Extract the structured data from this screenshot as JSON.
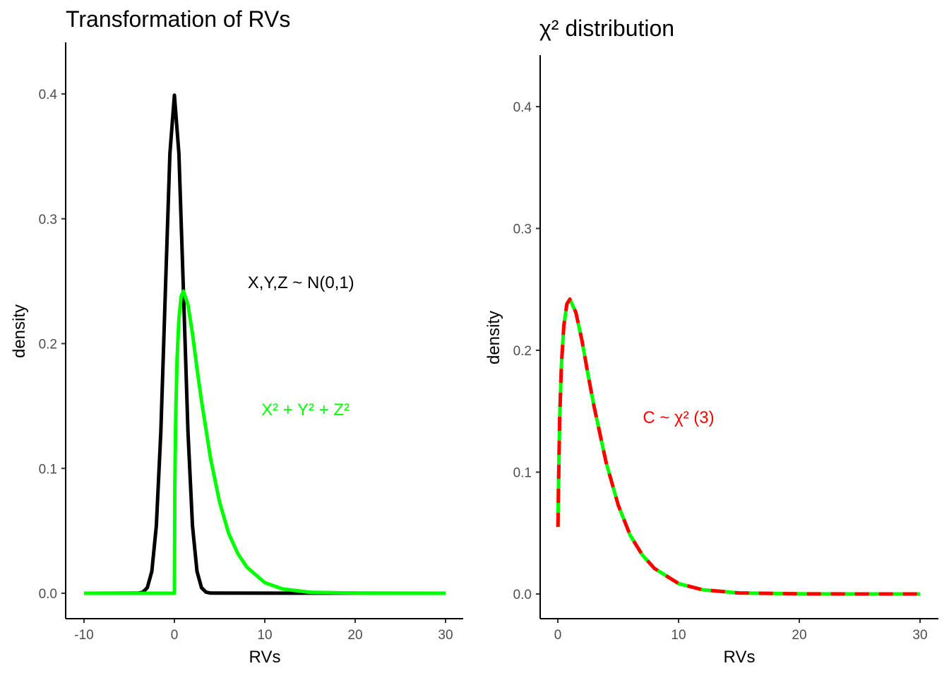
{
  "chart_data": [
    {
      "type": "line",
      "title": "Transformation of RVs",
      "xlabel": "RVs",
      "ylabel": "density",
      "xlim": [
        -10,
        30
      ],
      "ylim": [
        0,
        0.4
      ],
      "xticks": [
        "-10",
        "0",
        "10",
        "20",
        "30"
      ],
      "yticks": [
        "0.0",
        "0.1",
        "0.2",
        "0.3",
        "0.4"
      ],
      "grid": false,
      "legend": "none",
      "series": [
        {
          "color": "#000000",
          "x": [
            -10,
            -4,
            -3.5,
            -3,
            -2.5,
            -2,
            -1.5,
            -1,
            -0.5,
            0,
            0.5,
            1,
            1.5,
            2,
            2.5,
            3,
            3.5,
            4,
            30
          ],
          "y": [
            0,
            0.0001,
            0.0009,
            0.0044,
            0.0175,
            0.054,
            0.1295,
            0.242,
            0.352,
            0.399,
            0.352,
            0.242,
            0.1295,
            0.054,
            0.0175,
            0.0044,
            0.0009,
            0.0001,
            0
          ]
        },
        {
          "color": "#00ff00",
          "x": [
            -10,
            0,
            0.05,
            0.15,
            0.3,
            0.5,
            0.75,
            1,
            1.5,
            2,
            2.5,
            3,
            4,
            5,
            6,
            7,
            8,
            10,
            12,
            15,
            20,
            25,
            30
          ],
          "y": [
            0,
            0,
            0.086,
            0.143,
            0.188,
            0.22,
            0.238,
            0.242,
            0.231,
            0.208,
            0.18,
            0.154,
            0.108,
            0.073,
            0.048,
            0.032,
            0.021,
            0.0085,
            0.0034,
            0.0008,
            0.0001,
            0,
            0
          ]
        }
      ],
      "annotations": [
        {
          "text": "X,Y,Z ~ N(0,1)",
          "color": "#000000",
          "x": 14,
          "y": 0.249
        },
        {
          "text": "X² + Y² + Z²",
          "color": "#00ff00",
          "x": 14.5,
          "y": 0.147
        }
      ]
    },
    {
      "type": "line",
      "title": "χ² distribution",
      "xlabel": "RVs",
      "ylabel": "density",
      "xlim": [
        0,
        30
      ],
      "ylim": [
        0,
        0.4
      ],
      "xticks": [
        "0",
        "10",
        "20",
        "30"
      ],
      "yticks": [
        "0.0",
        "0.1",
        "0.2",
        "0.3",
        "0.4"
      ],
      "grid": false,
      "legend": "none",
      "series": [
        {
          "color": "#00ff00",
          "dash": "solid",
          "x": [
            0.01,
            0.05,
            0.15,
            0.3,
            0.5,
            0.75,
            1,
            1.5,
            2,
            2.5,
            3,
            4,
            5,
            6,
            7,
            8,
            10,
            12,
            15,
            20,
            25,
            30
          ],
          "y": [
            0.055,
            0.086,
            0.143,
            0.188,
            0.22,
            0.238,
            0.242,
            0.231,
            0.208,
            0.18,
            0.154,
            0.108,
            0.073,
            0.048,
            0.032,
            0.021,
            0.0085,
            0.0034,
            0.0008,
            0.0001,
            0,
            0
          ]
        },
        {
          "color": "#ff0000",
          "dash": "dashed",
          "x": [
            0.01,
            0.05,
            0.15,
            0.3,
            0.5,
            0.75,
            1,
            1.5,
            2,
            2.5,
            3,
            4,
            5,
            6,
            7,
            8,
            10,
            12,
            15,
            20,
            25,
            30
          ],
          "y": [
            0.055,
            0.086,
            0.143,
            0.188,
            0.22,
            0.238,
            0.242,
            0.231,
            0.208,
            0.18,
            0.154,
            0.108,
            0.073,
            0.048,
            0.032,
            0.021,
            0.0085,
            0.0034,
            0.0008,
            0.0001,
            0,
            0
          ]
        }
      ],
      "annotations": [
        {
          "text": "C ~ χ² (3)",
          "color": "#ff0000",
          "x": 10,
          "y": 0.145
        }
      ]
    }
  ]
}
